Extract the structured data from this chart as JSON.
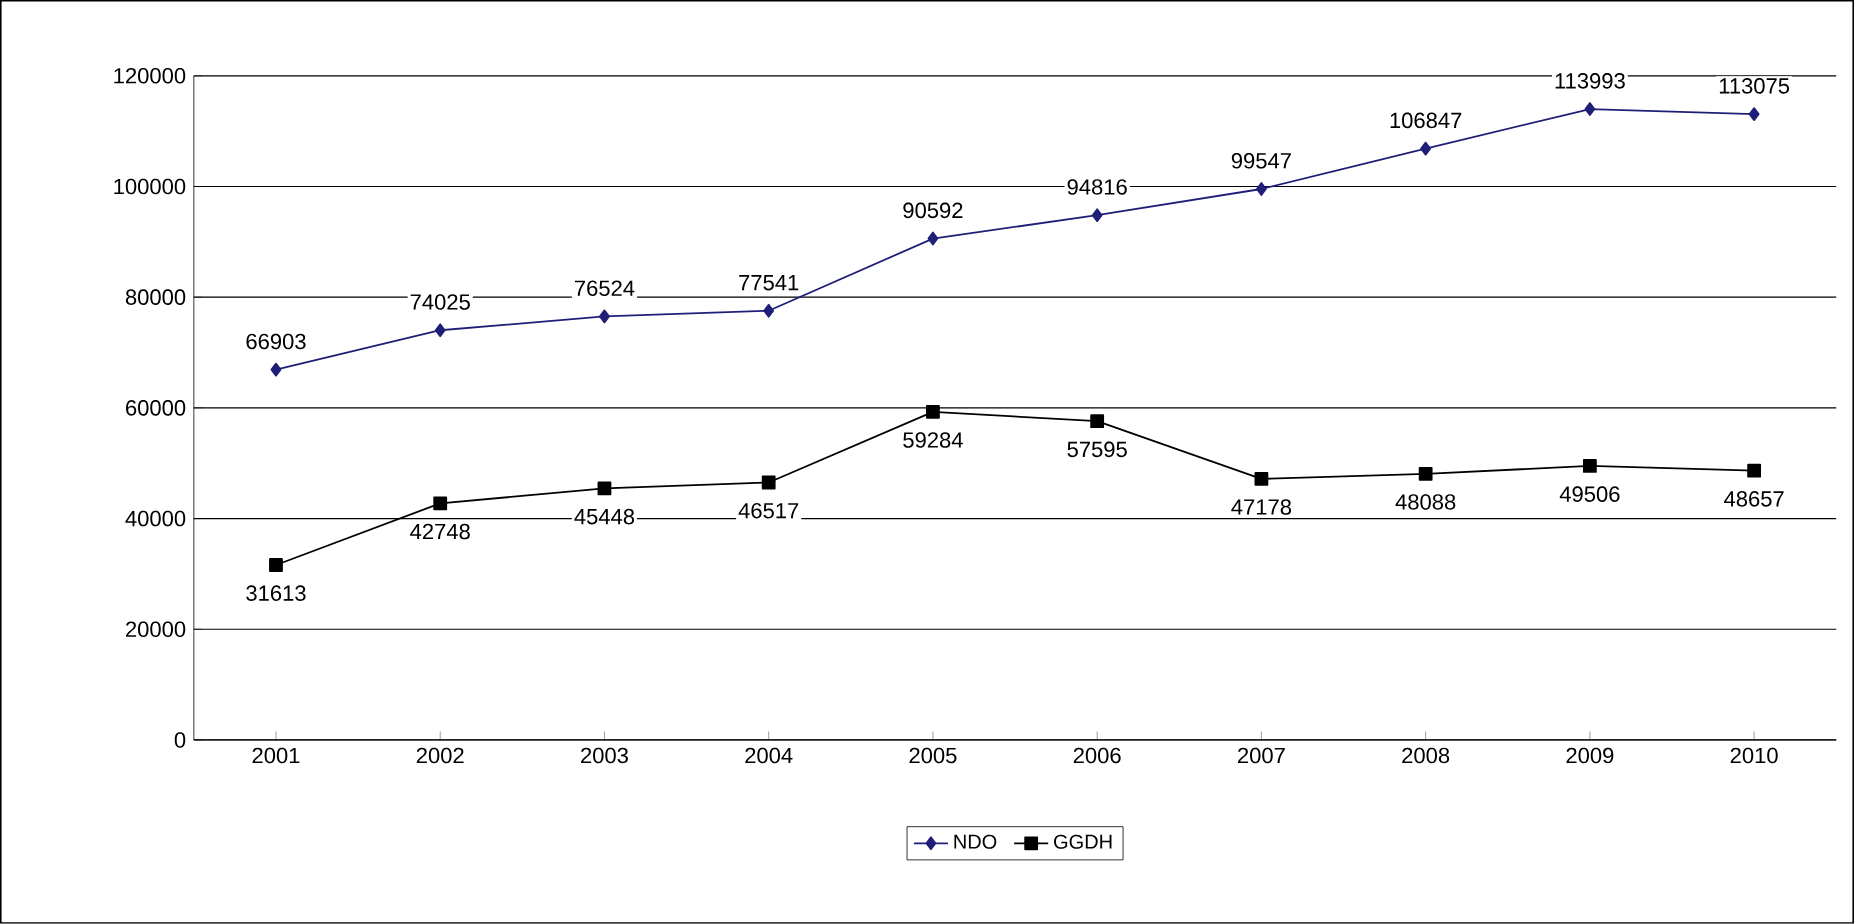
{
  "chart_data": {
    "type": "line",
    "categories": [
      "2001",
      "2002",
      "2003",
      "2004",
      "2005",
      "2006",
      "2007",
      "2008",
      "2009",
      "2010"
    ],
    "series": [
      {
        "name": "NDO",
        "color": "#1f1f78",
        "marker": "diamond",
        "values": [
          66903,
          74025,
          76524,
          77541,
          90592,
          94816,
          99547,
          106847,
          113993,
          113075
        ]
      },
      {
        "name": "GGDH",
        "color": "#000000",
        "marker": "square",
        "values": [
          31613,
          42748,
          45448,
          46517,
          59284,
          57595,
          47178,
          48088,
          49506,
          48657
        ]
      }
    ],
    "ylim": [
      0,
      120000
    ],
    "yticks": [
      0,
      20000,
      40000,
      60000,
      80000,
      100000,
      120000
    ],
    "grid": "y",
    "legend": "bottom",
    "data_labels": true,
    "line_style": "solid"
  }
}
